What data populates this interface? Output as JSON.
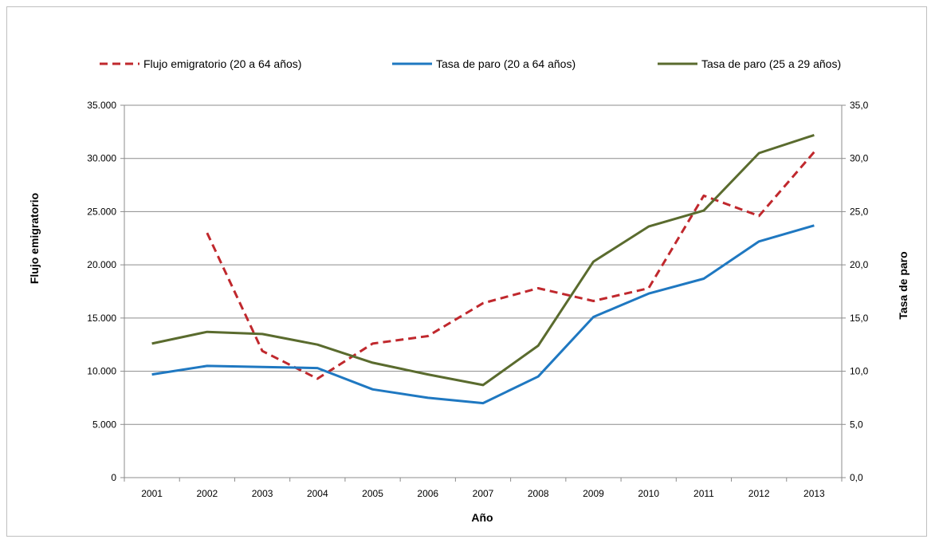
{
  "chart_data": {
    "type": "line",
    "categories": [
      "2001",
      "2002",
      "2003",
      "2004",
      "2005",
      "2006",
      "2007",
      "2008",
      "2009",
      "2010",
      "2011",
      "2012",
      "2013"
    ],
    "xlabel": "Año",
    "ylabel_left": "Flujo emigratorio",
    "ylabel_right": "Tasa de paro",
    "ylim_left": [
      0,
      35000
    ],
    "ylim_right": [
      0,
      35
    ],
    "yticks_left": [
      "0",
      "5.000",
      "10.000",
      "15.000",
      "20.000",
      "25.000",
      "30.000",
      "35.000"
    ],
    "yticks_right": [
      "0,0",
      "5,0",
      "10,0",
      "15,0",
      "20,0",
      "25,0",
      "30,0",
      "35,0"
    ],
    "grid": true,
    "legend_position": "top",
    "series": [
      {
        "name": "Flujo emigratorio (20 a 64 años)",
        "axis": "left",
        "color": "#c0282d",
        "dash": "dashed",
        "values": [
          null,
          23000,
          11900,
          9300,
          12600,
          13300,
          16400,
          17800,
          16600,
          17800,
          26500,
          24600,
          30600
        ]
      },
      {
        "name": "Tasa de paro (20 a 64 años)",
        "axis": "right",
        "color": "#1f78c1",
        "dash": "solid",
        "values": [
          9.7,
          10.5,
          10.4,
          10.3,
          8.3,
          7.5,
          7.0,
          9.5,
          15.1,
          17.3,
          18.7,
          22.2,
          23.7
        ]
      },
      {
        "name": "Tasa de paro (25 a 29 años)",
        "axis": "right",
        "color": "#5a6b2e",
        "dash": "solid",
        "values": [
          12.6,
          13.7,
          13.5,
          12.5,
          10.8,
          9.7,
          8.7,
          12.4,
          20.3,
          23.6,
          25.1,
          30.5,
          32.2
        ]
      }
    ]
  }
}
